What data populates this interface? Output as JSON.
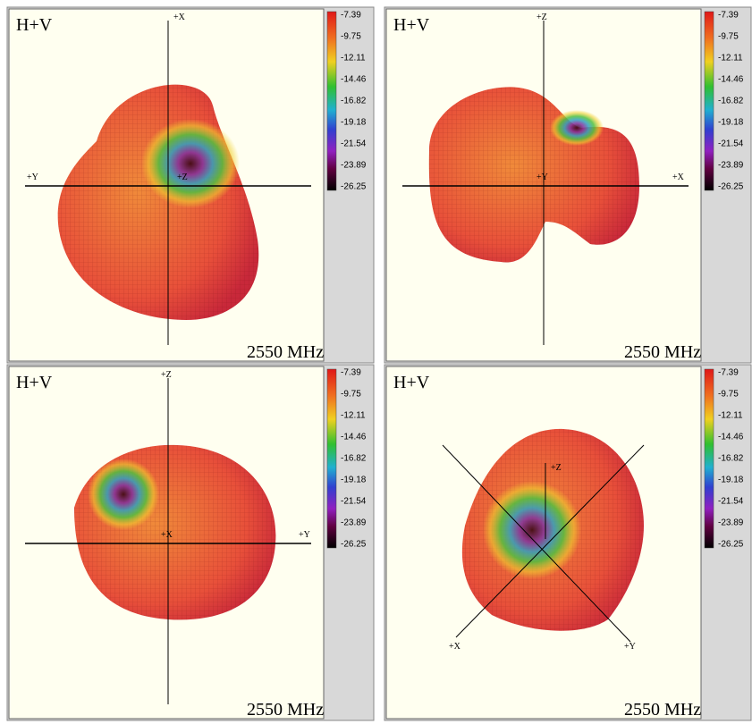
{
  "panels": [
    {
      "label": "H+V",
      "axes": [
        "+X",
        "+Y",
        "+Z"
      ],
      "colorbar": [
        "-7.39",
        "-9.75",
        "-12.11",
        "-14.46",
        "-16.82",
        "-19.18",
        "-21.54",
        "-23.89",
        "-26.25"
      ],
      "frequency": "2550 MHz"
    },
    {
      "label": "H+V",
      "axes": [
        "+Z",
        "+X",
        "+Y"
      ],
      "colorbar": [
        "-7.39",
        "-9.75",
        "-12.11",
        "-14.46",
        "-16.82",
        "-19.18",
        "-21.54",
        "-23.89",
        "-26.25"
      ],
      "frequency": "2550 MHz"
    },
    {
      "label": "H+V",
      "axes": [
        "+Z",
        "+Y",
        "+X"
      ],
      "colorbar": [
        "-7.39",
        "-9.75",
        "-12.11",
        "-14.46",
        "-16.82",
        "-19.18",
        "-21.54",
        "-23.89",
        "-26.25"
      ],
      "frequency": "2550 MHz"
    },
    {
      "label": "H+V",
      "axes": [
        "+Z",
        "+X",
        "+Y"
      ],
      "colorbar": [
        "-7.39",
        "-9.75",
        "-12.11",
        "-14.46",
        "-16.82",
        "-19.18",
        "-21.54",
        "-23.89",
        "-26.25"
      ],
      "frequency": "2550 MHz"
    }
  ]
}
